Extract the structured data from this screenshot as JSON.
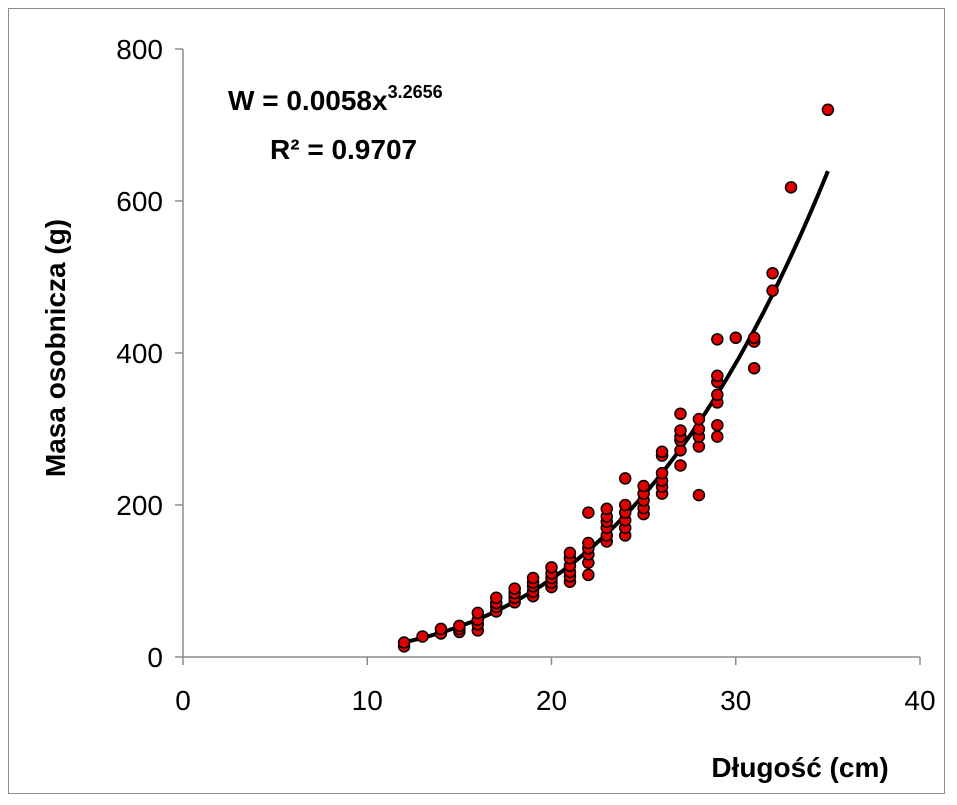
{
  "chart_data": {
    "type": "scatter",
    "title": "",
    "xlabel": "Długość (cm)",
    "ylabel": "Masa osobnicza (g)",
    "xlim": [
      0,
      40
    ],
    "ylim": [
      0,
      800
    ],
    "xticks": [
      0,
      10,
      20,
      30,
      40
    ],
    "yticks": [
      0,
      200,
      400,
      600,
      800
    ],
    "x_tick_labels": [
      "0",
      "10",
      "20",
      "30",
      "40"
    ],
    "y_tick_labels": [
      "0",
      "200",
      "400",
      "600",
      "800"
    ],
    "grid": false,
    "legend": "none",
    "marker_color": "#e00000",
    "marker_edge_color": "#000000",
    "trendline": {
      "type": "power",
      "a": 0.0058,
      "b": 3.2656,
      "x_range": [
        12,
        35
      ],
      "color": "#000000",
      "equation_base": "W = 0.0058x",
      "equation_exponent": "3.2656",
      "r_squared_label": "R² = 0.9707"
    },
    "series": [
      {
        "points": [
          [
            12,
            14
          ],
          [
            12,
            19
          ],
          [
            13,
            27
          ],
          [
            14,
            31
          ],
          [
            14,
            37
          ],
          [
            15,
            33
          ],
          [
            15,
            37
          ],
          [
            15,
            41
          ],
          [
            16,
            35
          ],
          [
            16,
            43
          ],
          [
            16,
            49
          ],
          [
            16,
            58
          ],
          [
            17,
            60
          ],
          [
            17,
            66
          ],
          [
            17,
            71
          ],
          [
            17,
            78
          ],
          [
            18,
            72
          ],
          [
            18,
            78
          ],
          [
            18,
            84
          ],
          [
            18,
            90
          ],
          [
            19,
            80
          ],
          [
            19,
            86
          ],
          [
            19,
            93
          ],
          [
            19,
            98
          ],
          [
            19,
            104
          ],
          [
            20,
            92
          ],
          [
            20,
            98
          ],
          [
            20,
            104
          ],
          [
            20,
            110
          ],
          [
            20,
            118
          ],
          [
            21,
            99
          ],
          [
            21,
            106
          ],
          [
            21,
            112
          ],
          [
            21,
            120
          ],
          [
            21,
            130
          ],
          [
            21,
            137
          ],
          [
            22,
            108
          ],
          [
            22,
            124
          ],
          [
            22,
            135
          ],
          [
            22,
            143
          ],
          [
            22,
            150
          ],
          [
            22,
            190
          ],
          [
            23,
            152
          ],
          [
            23,
            160
          ],
          [
            23,
            170
          ],
          [
            23,
            178
          ],
          [
            23,
            185
          ],
          [
            23,
            195
          ],
          [
            24,
            160
          ],
          [
            24,
            170
          ],
          [
            24,
            180
          ],
          [
            24,
            190
          ],
          [
            24,
            200
          ],
          [
            24,
            235
          ],
          [
            25,
            188
          ],
          [
            25,
            196
          ],
          [
            25,
            206
          ],
          [
            25,
            215
          ],
          [
            25,
            225
          ],
          [
            26,
            215
          ],
          [
            26,
            224
          ],
          [
            26,
            232
          ],
          [
            26,
            242
          ],
          [
            26,
            265
          ],
          [
            26,
            270
          ],
          [
            27,
            252
          ],
          [
            27,
            272
          ],
          [
            27,
            285
          ],
          [
            27,
            290
          ],
          [
            27,
            298
          ],
          [
            27,
            320
          ],
          [
            28,
            213
          ],
          [
            28,
            277
          ],
          [
            28,
            290
          ],
          [
            28,
            300
          ],
          [
            28,
            313
          ],
          [
            29,
            290
          ],
          [
            29,
            305
          ],
          [
            29,
            335
          ],
          [
            29,
            345
          ],
          [
            29,
            362
          ],
          [
            29,
            370
          ],
          [
            29,
            418
          ],
          [
            30,
            420
          ],
          [
            31,
            380
          ],
          [
            31,
            415
          ],
          [
            31,
            420
          ],
          [
            32,
            482
          ],
          [
            32,
            505
          ],
          [
            33,
            618
          ],
          [
            35,
            720
          ]
        ]
      }
    ]
  }
}
